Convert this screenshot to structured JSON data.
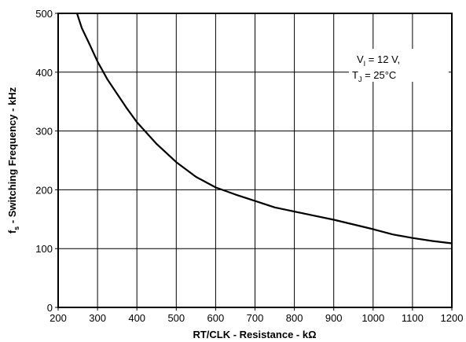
{
  "chart_data": {
    "type": "line",
    "title": "",
    "xlabel": "RT/CLK - Resistance - kΩ",
    "ylabel_prefix": "f",
    "ylabel_sub": "s",
    "ylabel_rest": " - Switching Frequency - kHz",
    "xlim": [
      200,
      1200
    ],
    "ylim": [
      0,
      500
    ],
    "xticks": [
      200,
      300,
      400,
      500,
      600,
      700,
      800,
      900,
      1000,
      1100,
      1200
    ],
    "yticks": [
      0,
      100,
      200,
      300,
      400,
      500
    ],
    "grid": true,
    "series": [
      {
        "x": [
          248,
          260,
          280,
          300,
          325,
          350,
          375,
          400,
          450,
          500,
          550,
          600,
          650,
          700,
          750,
          800,
          850,
          900,
          950,
          1000,
          1050,
          1100,
          1150,
          1200
        ],
        "y": [
          500,
          475,
          447,
          418,
          388,
          363,
          338,
          315,
          278,
          247,
          222,
          204,
          192,
          181,
          170,
          163,
          156,
          149,
          141,
          133,
          124,
          118,
          113,
          109
        ]
      }
    ],
    "annotation": {
      "line1_prefix": "V",
      "line1_sub": "I",
      "line1_rest": " = 12 V,",
      "line2_prefix": "T",
      "line2_sub": "J",
      "line2_rest": " = 25°C"
    }
  }
}
